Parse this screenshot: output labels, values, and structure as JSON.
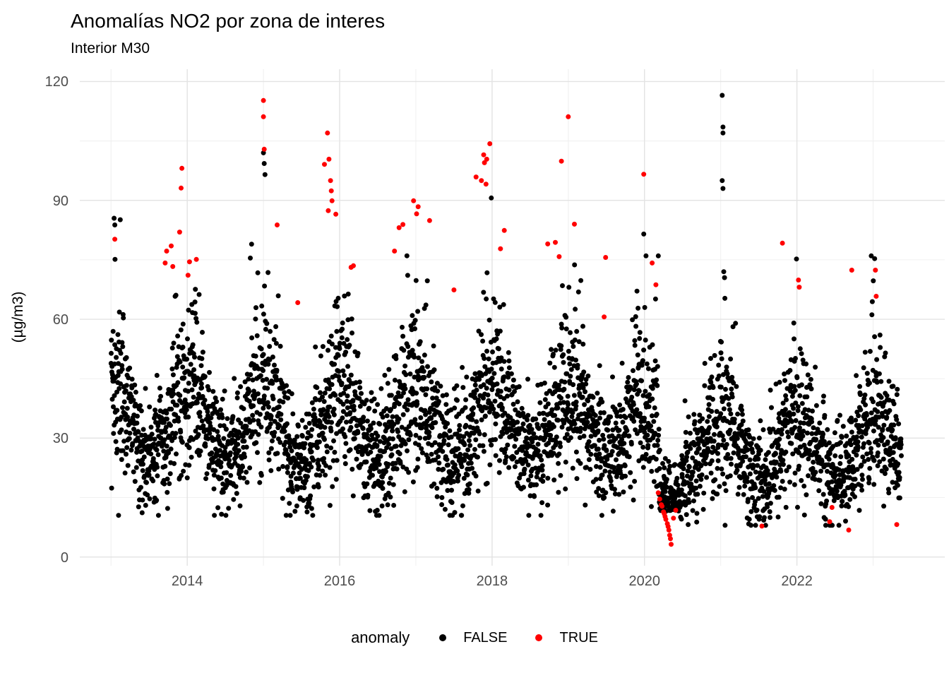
{
  "header": {
    "title": "Anomalías NO2 por zona de interes",
    "subtitle": "Interior M30"
  },
  "chart_data": {
    "type": "scatter",
    "title": "Anomalías NO2 por zona de interes",
    "subtitle": "Interior M30",
    "xlabel": "",
    "ylabel": "(µg/m3)",
    "x_ticks": [
      2014,
      2016,
      2018,
      2020,
      2022
    ],
    "x_minor_gridlines": [
      2013,
      2015,
      2017,
      2019,
      2021,
      2023
    ],
    "y_ticks": [
      0,
      30,
      60,
      90,
      120
    ],
    "y_minor_gridlines": [
      15,
      45,
      75,
      105
    ],
    "xlim": [
      2012.59,
      2023.94
    ],
    "ylim": [
      -2.2,
      123.1
    ],
    "grid": true,
    "legend": {
      "title": "anomaly",
      "position": "bottom",
      "entries": [
        {
          "label": "FALSE",
          "color": "#000000"
        },
        {
          "label": "TRUE",
          "color": "#FF0000"
        }
      ]
    },
    "colors": {
      "false_points": "#000000",
      "true_points": "#FF0000",
      "grid_major": "#E3E3E3",
      "grid_minor": "#F0F0F0",
      "axis_text": "#4D4D4D",
      "background": "#FFFFFF"
    },
    "point_radius_px": 3.5,
    "anomalies_true": [
      [
        2013.05,
        80.2
      ],
      [
        2013.71,
        74.2
      ],
      [
        2013.73,
        77.2
      ],
      [
        2013.79,
        78.5
      ],
      [
        2013.81,
        73.3
      ],
      [
        2013.9,
        82.0
      ],
      [
        2013.92,
        93.1
      ],
      [
        2013.93,
        98.1
      ],
      [
        2014.01,
        71.1
      ],
      [
        2014.03,
        74.5
      ],
      [
        2014.12,
        75.1
      ],
      [
        2015.0,
        115.2
      ],
      [
        2015.0,
        111.1
      ],
      [
        2015.01,
        102.9
      ],
      [
        2015.18,
        83.8
      ],
      [
        2015.45,
        64.2
      ],
      [
        2015.8,
        99.1
      ],
      [
        2015.84,
        107.0
      ],
      [
        2015.86,
        100.4
      ],
      [
        2015.88,
        95.0
      ],
      [
        2015.89,
        92.4
      ],
      [
        2015.9,
        89.9
      ],
      [
        2015.85,
        87.4
      ],
      [
        2015.95,
        86.5
      ],
      [
        2016.15,
        73.1
      ],
      [
        2016.18,
        73.5
      ],
      [
        2016.72,
        77.2
      ],
      [
        2016.78,
        83.1
      ],
      [
        2016.83,
        83.9
      ],
      [
        2016.97,
        89.9
      ],
      [
        2017.01,
        86.6
      ],
      [
        2017.03,
        88.4
      ],
      [
        2017.18,
        84.9
      ],
      [
        2017.5,
        67.4
      ],
      [
        2017.79,
        95.9
      ],
      [
        2017.86,
        95.0
      ],
      [
        2017.89,
        101.5
      ],
      [
        2017.9,
        99.5
      ],
      [
        2017.92,
        94.1
      ],
      [
        2017.93,
        100.4
      ],
      [
        2017.97,
        104.3
      ],
      [
        2018.11,
        77.8
      ],
      [
        2018.16,
        82.4
      ],
      [
        2018.73,
        79.0
      ],
      [
        2018.83,
        79.4
      ],
      [
        2018.88,
        75.8
      ],
      [
        2018.91,
        99.9
      ],
      [
        2019.0,
        111.1
      ],
      [
        2019.08,
        84.0
      ],
      [
        2019.47,
        60.6
      ],
      [
        2019.49,
        75.6
      ],
      [
        2019.99,
        96.6
      ],
      [
        2020.1,
        74.2
      ],
      [
        2020.15,
        68.7
      ],
      [
        2020.18,
        16.2
      ],
      [
        2020.2,
        14.6
      ],
      [
        2020.22,
        13.2
      ],
      [
        2020.23,
        12.8
      ],
      [
        2020.25,
        11.4
      ],
      [
        2020.26,
        10.9
      ],
      [
        2020.27,
        10.2
      ],
      [
        2020.28,
        9.5
      ],
      [
        2020.3,
        8.4
      ],
      [
        2020.31,
        7.7
      ],
      [
        2020.32,
        6.8
      ],
      [
        2020.33,
        5.5
      ],
      [
        2020.34,
        4.6
      ],
      [
        2020.35,
        3.2
      ],
      [
        2020.38,
        9.8
      ],
      [
        2020.41,
        11.8
      ],
      [
        2021.54,
        7.8
      ],
      [
        2021.81,
        79.2
      ],
      [
        2022.02,
        69.9
      ],
      [
        2022.03,
        68.1
      ],
      [
        2022.43,
        8.9
      ],
      [
        2022.46,
        12.5
      ],
      [
        2022.68,
        6.8
      ],
      [
        2022.72,
        72.4
      ],
      [
        2023.03,
        72.4
      ],
      [
        2023.04,
        65.8
      ],
      [
        2023.31,
        8.2
      ]
    ],
    "notable_false_points": [
      [
        2013.04,
        85.5
      ],
      [
        2013.05,
        83.8
      ],
      [
        2015.0,
        102.0
      ],
      [
        2015.01,
        99.3
      ],
      [
        2015.02,
        96.5
      ],
      [
        2017.99,
        90.6
      ],
      [
        2019.99,
        81.5
      ],
      [
        2020.02,
        76.0
      ],
      [
        2021.02,
        116.5
      ],
      [
        2021.03,
        108.5
      ],
      [
        2021.03,
        107.0
      ],
      [
        2021.02,
        95.0
      ],
      [
        2021.03,
        93.0
      ],
      [
        2021.04,
        72.0
      ],
      [
        2021.05,
        70.5
      ],
      [
        2023.02,
        75.3
      ]
    ],
    "false_cloud_model": {
      "seed": 42,
      "start": 2013.0,
      "end": 2023.37,
      "per_year": 365,
      "season_peak": 0.01,
      "transition": 2019.95,
      "pre": {
        "base": 33.5,
        "amp": 9.0,
        "sd": 7.5,
        "sd_winter": 4.0,
        "spike_prob": 0.085,
        "spike_scale": 11.0,
        "min": 10.5,
        "max": 90
      },
      "post": {
        "base": 27.5,
        "amp": 8.0,
        "sd": 6.5,
        "sd_winter": 3.0,
        "spike_prob": 0.05,
        "spike_scale": 9.0,
        "min": 8.0,
        "max": 76
      },
      "covid": {
        "start": 2020.19,
        "end": 2020.47,
        "base": 11.5,
        "sd": 5.5,
        "min": 8.0,
        "max": 27.0
      }
    }
  }
}
